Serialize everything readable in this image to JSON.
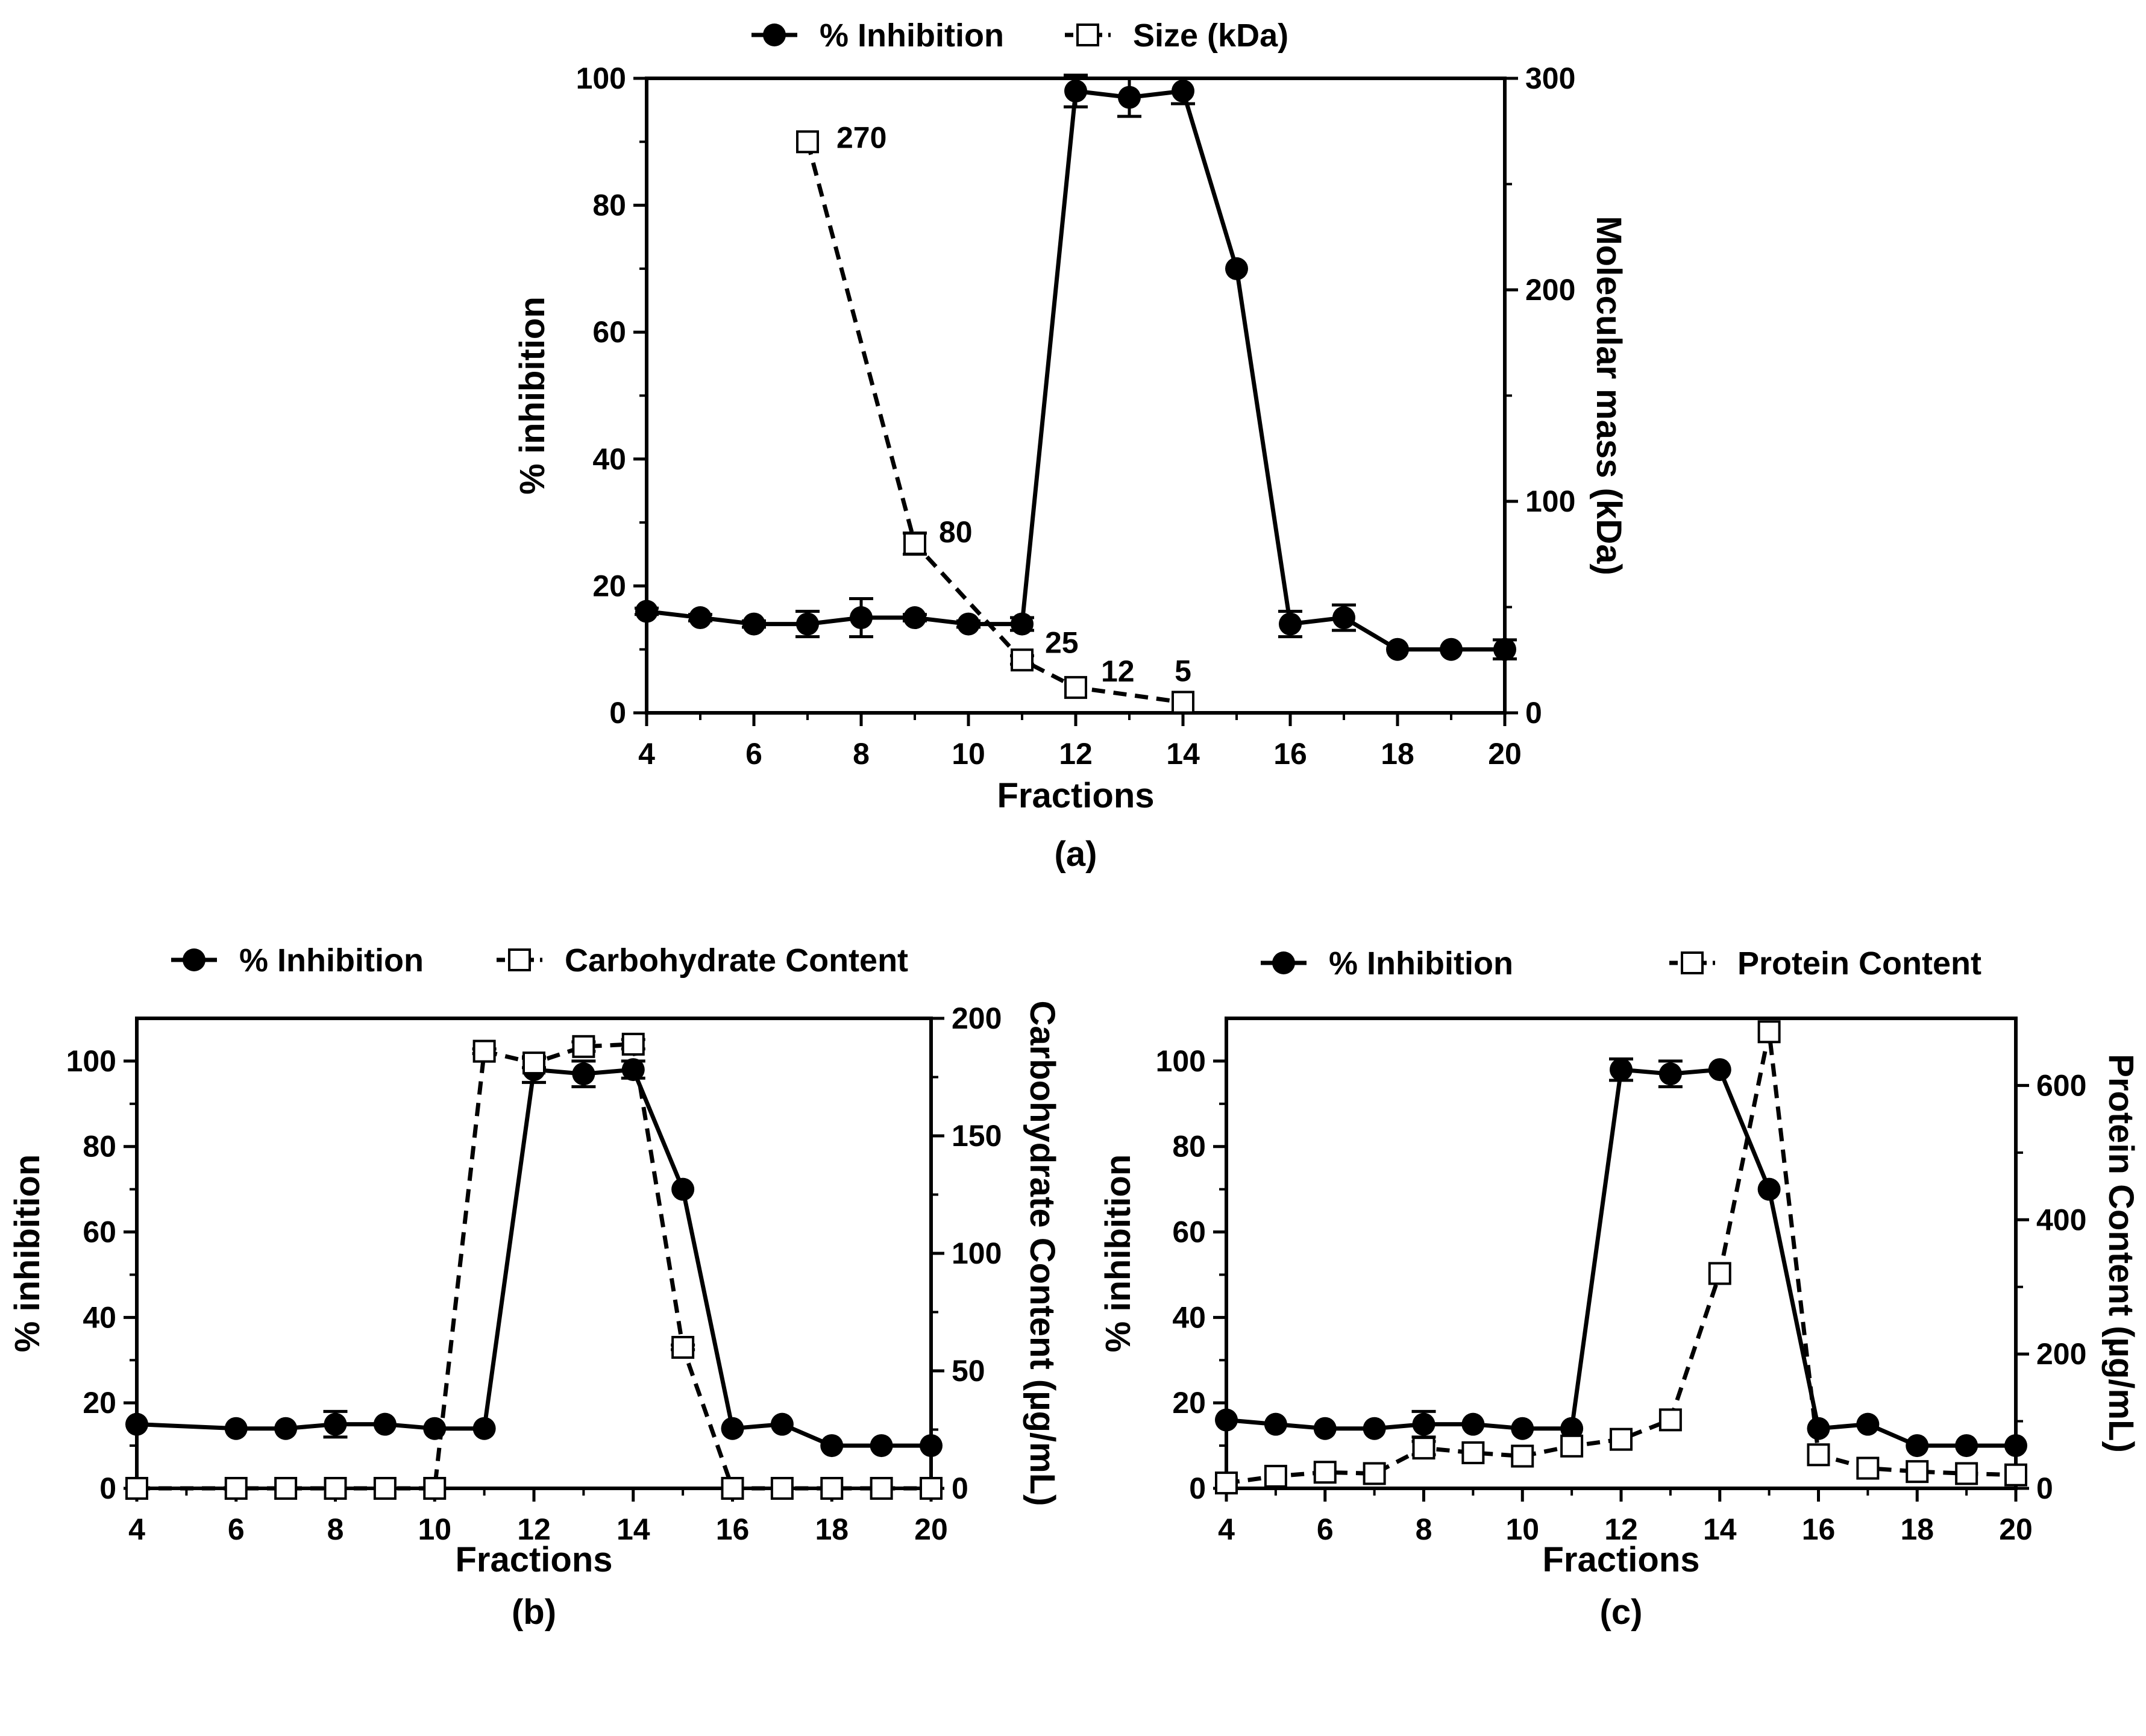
{
  "chart_data": [
    {
      "panel": "(a)",
      "type": "line",
      "xlabel": "Fractions",
      "ylabel_left": "% inhibition",
      "ylabel_right": "Molecular mass (kDa)",
      "xlim": [
        4,
        20
      ],
      "x_ticks": [
        4,
        6,
        8,
        10,
        12,
        14,
        16,
        18,
        20
      ],
      "ylim_left": [
        0,
        100
      ],
      "y_ticks_left": [
        0,
        20,
        40,
        60,
        80,
        100
      ],
      "ylim_right": [
        0,
        300
      ],
      "y_ticks_right": [
        0,
        100,
        200,
        300
      ],
      "series": [
        {
          "name": "% Inhibition",
          "axis": "left",
          "style": "solid-filled-circle",
          "x": [
            4,
            5,
            6,
            7,
            8,
            9,
            10,
            11,
            12,
            13,
            14,
            15,
            16,
            17,
            18,
            19,
            20
          ],
          "values": [
            16,
            15,
            14,
            14,
            15,
            15,
            14,
            14,
            98,
            97,
            98,
            70,
            14,
            15,
            10,
            10,
            10
          ],
          "errors": [
            0.5,
            0.5,
            0.5,
            2.0,
            3.0,
            0.5,
            0.5,
            1.0,
            2.5,
            3.0,
            2.0,
            0,
            2.0,
            2.0,
            0,
            0,
            1.5
          ]
        },
        {
          "name": "Size (kDa)",
          "axis": "right",
          "style": "dashed-open-square",
          "x": [
            7,
            9,
            11,
            12,
            14
          ],
          "values": [
            270,
            80,
            25,
            12,
            5
          ],
          "errors": [
            0,
            5,
            2,
            0,
            0
          ],
          "point_labels": [
            "270",
            "80",
            "25",
            "12",
            "5"
          ]
        }
      ]
    },
    {
      "panel": "(b)",
      "type": "line",
      "xlabel": "Fractions",
      "ylabel_left": "% inhibition",
      "ylabel_right": "Carbohydrate Content (µg/mL)",
      "xlim": [
        4,
        20
      ],
      "x_ticks": [
        4,
        6,
        8,
        10,
        12,
        14,
        16,
        18,
        20
      ],
      "ylim_left": [
        0,
        110
      ],
      "y_ticks_left": [
        0,
        20,
        40,
        60,
        80,
        100
      ],
      "ylim_right": [
        0,
        200
      ],
      "y_ticks_right": [
        0,
        50,
        100,
        150,
        200
      ],
      "series": [
        {
          "name": "% Inhibition",
          "axis": "left",
          "style": "solid-filled-circle",
          "x": [
            4,
            6,
            7,
            8,
            9,
            10,
            11,
            12,
            13,
            14,
            15,
            16,
            17,
            18,
            19,
            20
          ],
          "values": [
            15,
            14,
            14,
            15,
            15,
            14,
            14,
            98,
            97,
            98,
            70,
            14,
            15,
            10,
            10,
            10
          ],
          "errors": [
            0,
            0,
            0,
            3.0,
            0,
            0,
            0,
            3.0,
            3.0,
            2.0,
            0,
            0,
            0,
            0,
            0,
            0
          ]
        },
        {
          "name": "Carbohydrate Content",
          "axis": "right",
          "style": "dashed-open-square",
          "x": [
            4,
            6,
            7,
            8,
            9,
            10,
            11,
            12,
            13,
            14,
            15,
            16,
            17,
            18,
            19,
            20
          ],
          "values": [
            0,
            0,
            0,
            0,
            0,
            0,
            186,
            181,
            188,
            189,
            60,
            0,
            0,
            0,
            0,
            0
          ],
          "errors": [
            0,
            0,
            0,
            0,
            0,
            0,
            1,
            2,
            2,
            2,
            1,
            0,
            0,
            0,
            0,
            0
          ]
        }
      ]
    },
    {
      "panel": "(c)",
      "type": "line",
      "xlabel": "Fractions",
      "ylabel_left": "% inhibition",
      "ylabel_right": "Protein Content (µg/mL)",
      "xlim": [
        4,
        20
      ],
      "x_ticks": [
        4,
        6,
        8,
        10,
        12,
        14,
        16,
        18,
        20
      ],
      "ylim_left": [
        0,
        110
      ],
      "y_ticks_left": [
        0,
        20,
        40,
        60,
        80,
        100
      ],
      "ylim_right": [
        0,
        700
      ],
      "y_ticks_right": [
        0,
        200,
        400,
        600
      ],
      "series": [
        {
          "name": "% Inhibition",
          "axis": "left",
          "style": "solid-filled-circle",
          "x": [
            4,
            5,
            6,
            7,
            8,
            9,
            10,
            11,
            12,
            13,
            14,
            15,
            16,
            17,
            18,
            19,
            20
          ],
          "values": [
            16,
            15,
            14,
            14,
            15,
            15,
            14,
            14,
            98,
            97,
            98,
            70,
            14,
            15,
            10,
            10,
            10
          ],
          "errors": [
            0,
            0,
            0,
            0,
            3.0,
            0,
            0,
            0,
            2.5,
            3.0,
            0,
            0,
            0,
            0,
            0,
            0,
            0
          ]
        },
        {
          "name": "Protein Content",
          "axis": "right",
          "style": "dashed-open-square",
          "x": [
            4,
            5,
            6,
            7,
            8,
            9,
            10,
            11,
            12,
            13,
            14,
            15,
            16,
            17,
            18,
            19,
            20
          ],
          "values": [
            8,
            18,
            24,
            22,
            60,
            53,
            48,
            63,
            73,
            102,
            320,
            680,
            50,
            30,
            25,
            22,
            20
          ],
          "errors": [
            0,
            0,
            0,
            0,
            10,
            0,
            0,
            0,
            0,
            0,
            0,
            0,
            0,
            0,
            0,
            0,
            0
          ]
        }
      ]
    }
  ]
}
